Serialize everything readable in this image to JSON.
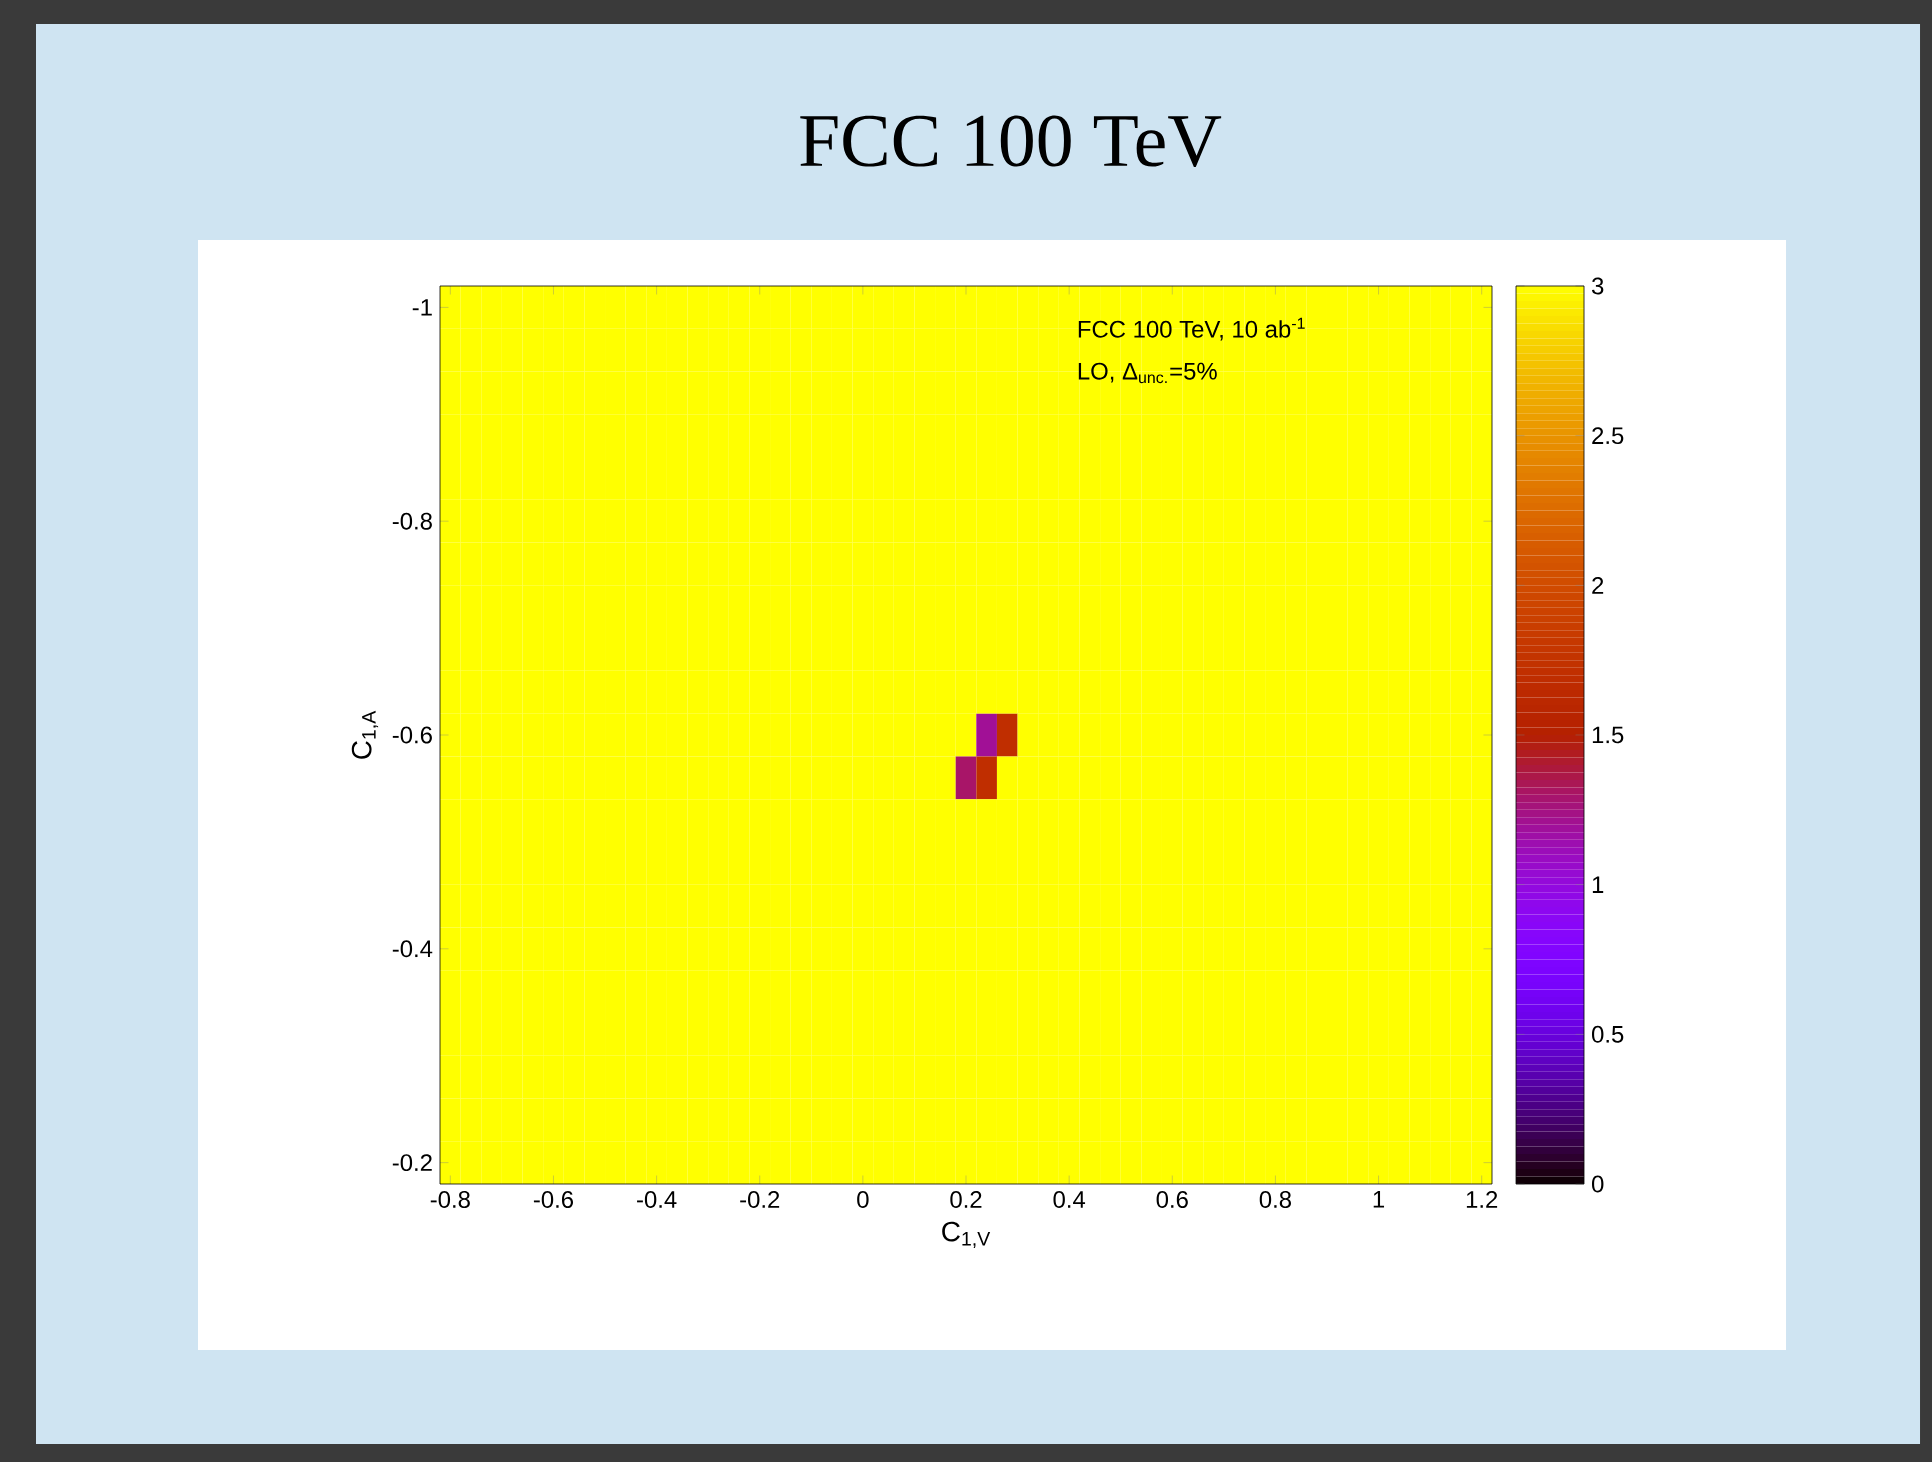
{
  "chart_data": {
    "type": "heatmap",
    "title": "FCC 100 TeV",
    "xlabel": "C$_{1,V}$",
    "ylabel": "C$_{1,A}$",
    "annotations": [
      "FCC 100 TeV, 10 ab$^{-1}$",
      "LO, Δ$_{unc.}$=5%"
    ],
    "clim": [
      0,
      3
    ],
    "cticks": [
      0,
      0.5,
      1,
      1.5,
      2,
      2.5,
      3
    ],
    "categories": [
      "-0.8",
      null,
      null,
      null,
      null,
      "-0.6",
      null,
      null,
      null,
      null,
      "-0.4",
      null,
      null,
      null,
      null,
      "-0.2",
      null,
      null,
      null,
      null,
      "0",
      null,
      null,
      null,
      null,
      "0.2",
      null,
      null,
      null,
      null,
      "0.4",
      null,
      null,
      null,
      null,
      "0.6",
      null,
      null,
      null,
      null,
      "0.8",
      null,
      null,
      null,
      null,
      "1",
      null,
      null,
      null,
      null,
      "1.2"
    ],
    "y_categories": [
      "-1",
      null,
      null,
      null,
      null,
      "-0.8",
      null,
      null,
      null,
      null,
      "-0.6",
      null,
      null,
      null,
      null,
      "-0.4",
      null,
      null,
      null,
      null,
      "-0.2"
    ],
    "cells": [
      [
        3,
        3,
        3,
        3,
        3,
        3,
        3,
        3,
        3,
        3,
        3,
        3,
        3,
        3,
        3,
        3,
        3,
        3,
        3,
        3,
        3,
        3,
        3,
        3,
        3,
        3,
        3,
        3,
        3,
        3,
        3,
        3,
        3,
        3,
        3,
        3,
        3,
        3,
        3,
        3,
        3,
        3,
        3,
        3,
        3,
        3,
        3,
        3,
        3,
        3,
        3
      ],
      [
        3,
        3,
        3,
        3,
        3,
        3,
        3,
        3,
        3,
        3,
        3,
        3,
        3,
        3,
        3,
        3,
        3,
        3,
        3,
        3,
        3,
        3,
        3,
        3,
        3,
        3,
        3,
        3,
        3,
        3,
        3,
        3,
        3,
        3,
        3,
        3,
        3,
        3,
        3,
        3,
        3,
        3,
        3,
        3,
        3,
        3,
        3,
        3,
        3,
        3,
        3
      ],
      [
        3,
        3,
        3,
        3,
        3,
        3,
        3,
        3,
        3,
        3,
        3,
        3,
        3,
        3,
        3,
        3,
        3,
        3,
        3,
        3,
        3,
        3,
        3,
        3,
        3,
        3,
        3,
        3,
        3,
        3,
        3,
        3,
        3,
        3,
        3,
        3,
        3,
        3,
        3,
        3,
        3,
        3,
        3,
        3,
        3,
        3,
        3,
        3,
        3,
        3,
        3
      ],
      [
        3,
        3,
        3,
        3,
        3,
        3,
        3,
        3,
        3,
        3,
        3,
        3,
        3,
        3,
        3,
        3,
        3,
        3,
        3,
        3,
        3,
        3,
        3,
        3,
        3,
        3,
        3,
        3,
        3,
        3,
        3,
        3,
        3,
        3,
        3,
        3,
        3,
        3,
        3,
        3,
        3,
        3,
        3,
        3,
        3,
        3,
        3,
        3,
        3,
        3,
        3
      ],
      [
        3,
        3,
        3,
        3,
        3,
        3,
        3,
        3,
        3,
        3,
        3,
        3,
        3,
        3,
        3,
        3,
        3,
        3,
        3,
        3,
        3,
        3,
        3,
        3,
        3,
        3,
        3,
        3,
        3,
        3,
        3,
        3,
        3,
        3,
        3,
        3,
        3,
        3,
        3,
        3,
        3,
        3,
        3,
        3,
        3,
        3,
        3,
        3,
        3,
        3,
        3
      ],
      [
        3,
        3,
        3,
        3,
        3,
        3,
        3,
        3,
        3,
        3,
        3,
        3,
        3,
        3,
        3,
        3,
        3,
        3,
        3,
        3,
        3,
        3,
        3,
        3,
        3,
        3,
        3,
        3,
        3,
        3,
        3,
        3,
        3,
        3,
        3,
        3,
        3,
        3,
        3,
        3,
        3,
        3,
        3,
        3,
        3,
        3,
        3,
        3,
        3,
        3,
        3
      ],
      [
        3,
        3,
        3,
        3,
        3,
        3,
        3,
        3,
        3,
        3,
        3,
        3,
        3,
        3,
        3,
        3,
        3,
        3,
        3,
        3,
        3,
        3,
        3,
        3,
        3,
        3,
        3,
        3,
        3,
        3,
        3,
        3,
        3,
        3,
        3,
        3,
        3,
        3,
        3,
        3,
        3,
        3,
        3,
        3,
        3,
        3,
        3,
        3,
        3,
        3,
        3
      ],
      [
        3,
        3,
        3,
        3,
        3,
        3,
        3,
        3,
        3,
        3,
        3,
        3,
        3,
        3,
        3,
        3,
        3,
        3,
        3,
        3,
        3,
        3,
        3,
        3,
        3,
        3,
        3,
        3,
        3,
        3,
        3,
        3,
        3,
        3,
        3,
        3,
        3,
        3,
        3,
        3,
        3,
        3,
        3,
        3,
        3,
        3,
        3,
        3,
        3,
        3,
        3
      ],
      [
        3,
        3,
        3,
        3,
        3,
        3,
        3,
        3,
        3,
        3,
        3,
        3,
        3,
        3,
        3,
        3,
        3,
        3,
        3,
        3,
        3,
        3,
        3,
        3,
        3,
        3,
        3,
        3,
        3,
        3,
        3,
        3,
        3,
        3,
        3,
        3,
        3,
        3,
        3,
        3,
        3,
        3,
        3,
        3,
        3,
        3,
        3,
        3,
        3,
        3,
        3
      ],
      [
        3,
        3,
        3,
        3,
        3,
        3,
        3,
        3,
        3,
        3,
        3,
        3,
        3,
        3,
        3,
        3,
        3,
        3,
        3,
        3,
        3,
        3,
        3,
        3,
        3,
        3,
        3,
        3,
        3,
        3,
        3,
        3,
        3,
        3,
        3,
        3,
        3,
        3,
        3,
        3,
        3,
        3,
        3,
        3,
        3,
        3,
        3,
        3,
        3,
        3,
        3
      ],
      [
        3,
        3,
        3,
        3,
        3,
        3,
        3,
        3,
        3,
        3,
        3,
        3,
        3,
        3,
        3,
        3,
        3,
        3,
        3,
        3,
        3,
        3,
        3,
        3,
        3,
        3,
        1.2,
        1.7,
        3,
        3,
        3,
        3,
        3,
        3,
        3,
        3,
        3,
        3,
        3,
        3,
        3,
        3,
        3,
        3,
        3,
        3,
        3,
        3,
        3,
        3,
        3
      ],
      [
        3,
        3,
        3,
        3,
        3,
        3,
        3,
        3,
        3,
        3,
        3,
        3,
        3,
        3,
        3,
        3,
        3,
        3,
        3,
        3,
        3,
        3,
        3,
        3,
        3,
        1.3,
        1.7,
        3,
        3,
        3,
        3,
        3,
        3,
        3,
        3,
        3,
        3,
        3,
        3,
        3,
        3,
        3,
        3,
        3,
        3,
        3,
        3,
        3,
        3,
        3,
        3
      ],
      [
        3,
        3,
        3,
        3,
        3,
        3,
        3,
        3,
        3,
        3,
        3,
        3,
        3,
        3,
        3,
        3,
        3,
        3,
        3,
        3,
        3,
        3,
        3,
        3,
        3,
        3,
        3,
        3,
        3,
        3,
        3,
        3,
        3,
        3,
        3,
        3,
        3,
        3,
        3,
        3,
        3,
        3,
        3,
        3,
        3,
        3,
        3,
        3,
        3,
        3,
        3
      ],
      [
        3,
        3,
        3,
        3,
        3,
        3,
        3,
        3,
        3,
        3,
        3,
        3,
        3,
        3,
        3,
        3,
        3,
        3,
        3,
        3,
        3,
        3,
        3,
        3,
        3,
        3,
        3,
        3,
        3,
        3,
        3,
        3,
        3,
        3,
        3,
        3,
        3,
        3,
        3,
        3,
        3,
        3,
        3,
        3,
        3,
        3,
        3,
        3,
        3,
        3,
        3
      ],
      [
        3,
        3,
        3,
        3,
        3,
        3,
        3,
        3,
        3,
        3,
        3,
        3,
        3,
        3,
        3,
        3,
        3,
        3,
        3,
        3,
        3,
        3,
        3,
        3,
        3,
        3,
        3,
        3,
        3,
        3,
        3,
        3,
        3,
        3,
        3,
        3,
        3,
        3,
        3,
        3,
        3,
        3,
        3,
        3,
        3,
        3,
        3,
        3,
        3,
        3,
        3
      ],
      [
        3,
        3,
        3,
        3,
        3,
        3,
        3,
        3,
        3,
        3,
        3,
        3,
        3,
        3,
        3,
        3,
        3,
        3,
        3,
        3,
        3,
        3,
        3,
        3,
        3,
        3,
        3,
        3,
        3,
        3,
        3,
        3,
        3,
        3,
        3,
        3,
        3,
        3,
        3,
        3,
        3,
        3,
        3,
        3,
        3,
        3,
        3,
        3,
        3,
        3,
        3
      ],
      [
        3,
        3,
        3,
        3,
        3,
        3,
        3,
        3,
        3,
        3,
        3,
        3,
        3,
        3,
        3,
        3,
        3,
        3,
        3,
        3,
        3,
        3,
        3,
        3,
        3,
        3,
        3,
        3,
        3,
        3,
        3,
        3,
        3,
        3,
        3,
        3,
        3,
        3,
        3,
        3,
        3,
        3,
        3,
        3,
        3,
        3,
        3,
        3,
        3,
        3,
        3
      ],
      [
        3,
        3,
        3,
        3,
        3,
        3,
        3,
        3,
        3,
        3,
        3,
        3,
        3,
        3,
        3,
        3,
        3,
        3,
        3,
        3,
        3,
        3,
        3,
        3,
        3,
        3,
        3,
        3,
        3,
        3,
        3,
        3,
        3,
        3,
        3,
        3,
        3,
        3,
        3,
        3,
        3,
        3,
        3,
        3,
        3,
        3,
        3,
        3,
        3,
        3,
        3
      ],
      [
        3,
        3,
        3,
        3,
        3,
        3,
        3,
        3,
        3,
        3,
        3,
        3,
        3,
        3,
        3,
        3,
        3,
        3,
        3,
        3,
        3,
        3,
        3,
        3,
        3,
        3,
        3,
        3,
        3,
        3,
        3,
        3,
        3,
        3,
        3,
        3,
        3,
        3,
        3,
        3,
        3,
        3,
        3,
        3,
        3,
        3,
        3,
        3,
        3,
        3,
        3
      ],
      [
        3,
        3,
        3,
        3,
        3,
        3,
        3,
        3,
        3,
        3,
        3,
        3,
        3,
        3,
        3,
        3,
        3,
        3,
        3,
        3,
        3,
        3,
        3,
        3,
        3,
        3,
        3,
        3,
        3,
        3,
        3,
        3,
        3,
        3,
        3,
        3,
        3,
        3,
        3,
        3,
        3,
        3,
        3,
        3,
        3,
        3,
        3,
        3,
        3,
        3,
        3
      ],
      [
        3,
        3,
        3,
        3,
        3,
        3,
        3,
        3,
        3,
        3,
        3,
        3,
        3,
        3,
        3,
        3,
        3,
        3,
        3,
        3,
        3,
        3,
        3,
        3,
        3,
        3,
        3,
        3,
        3,
        3,
        3,
        3,
        3,
        3,
        3,
        3,
        3,
        3,
        3,
        3,
        3,
        3,
        3,
        3,
        3,
        3,
        3,
        3,
        3,
        3,
        3
      ]
    ]
  }
}
